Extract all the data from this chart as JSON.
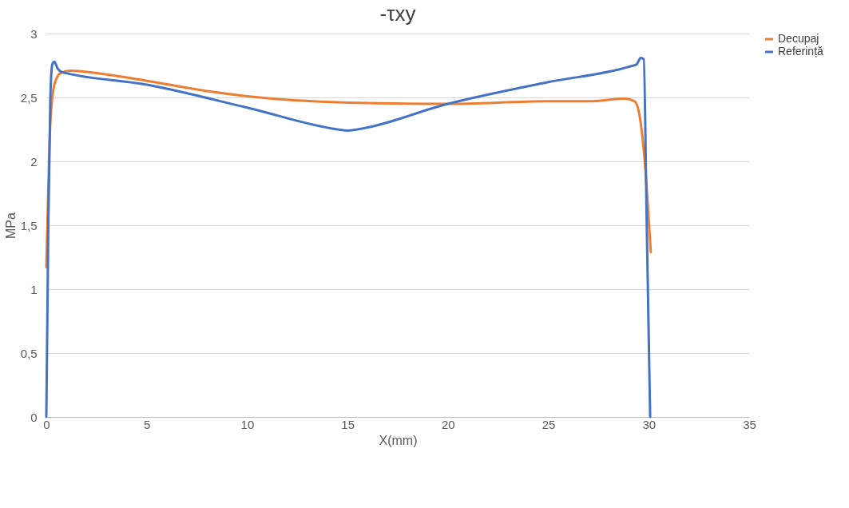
{
  "chart_data": {
    "type": "line",
    "title": "-τxy",
    "xlabel": "X(mm)",
    "ylabel": "MPa",
    "xlim": [
      0,
      35
    ],
    "xticks": [
      0,
      5,
      10,
      15,
      20,
      25,
      30,
      35
    ],
    "ylim": [
      0,
      3
    ],
    "yticks": [
      0,
      {
        "value": 0.5,
        "label": "0,5"
      },
      1,
      {
        "value": 1.5,
        "label": "1,5"
      },
      2,
      {
        "value": 2.5,
        "label": "2,5"
      },
      3
    ],
    "grid": "y",
    "legend": "right",
    "marker": "none",
    "line_style": "solid",
    "series": [
      {
        "name": "Decupaj",
        "color": "#ed7d31",
        "x": [
          0,
          0.1,
          0.2,
          0.4,
          0.7,
          1.2,
          2,
          5,
          8,
          10,
          15,
          20,
          25,
          27,
          28.8,
          29.3,
          29.6,
          29.8,
          30.1
        ],
        "values": [
          1.17,
          1.8,
          2.3,
          2.6,
          2.69,
          2.71,
          2.7,
          2.63,
          2.55,
          2.51,
          2.46,
          2.45,
          2.47,
          2.47,
          2.49,
          2.47,
          2.3,
          2.0,
          1.29
        ]
      },
      {
        "name": "Referință",
        "color": "#4472c4",
        "x": [
          0,
          0.1,
          0.2,
          0.3,
          0.4,
          0.55,
          0.75,
          1,
          5,
          10,
          14.5,
          15,
          15.5,
          20,
          25,
          29,
          29.4,
          29.6,
          29.75,
          29.9,
          30.07
        ],
        "values": [
          0,
          1.5,
          2.5,
          2.76,
          2.78,
          2.73,
          2.7,
          2.69,
          2.6,
          2.42,
          2.25,
          2.24,
          2.25,
          2.45,
          2.62,
          2.74,
          2.76,
          2.81,
          2.8,
          1.5,
          0
        ]
      }
    ]
  }
}
